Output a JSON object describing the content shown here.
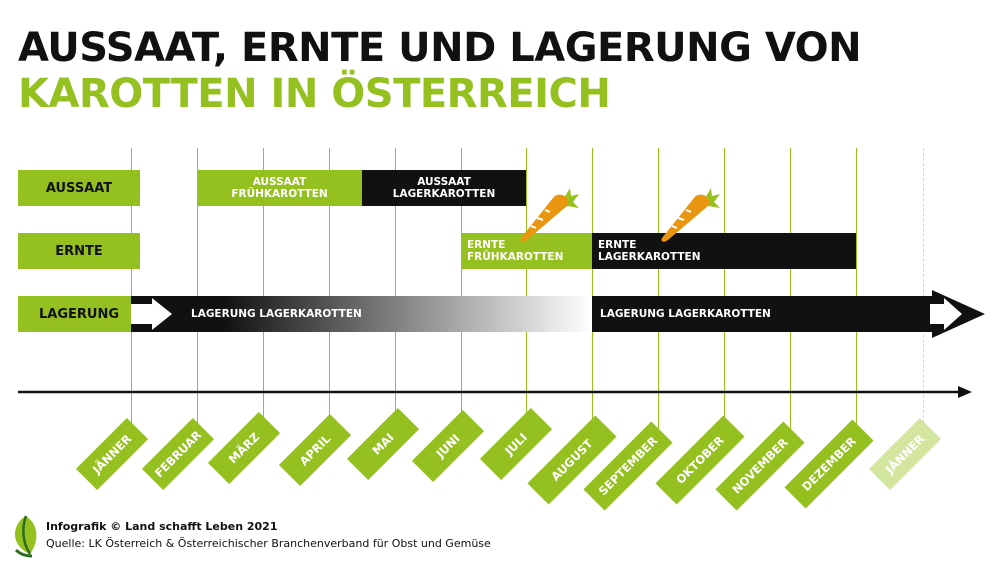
{
  "title": {
    "line1": "AUSSAAT, ERNTE UND LAGERUNG VON",
    "line2": "KAROTTEN IN ÖSTERREICH"
  },
  "rows": {
    "aussaat": "AUSSAAT",
    "ernte": "ERNTE",
    "lagerung": "LAGERUNG"
  },
  "bars": {
    "aussaat_frueh": [
      "AUSSAAT",
      "FRÜHKAROTTEN"
    ],
    "aussaat_lager": [
      "AUSSAAT",
      "LAGERKAROTTEN"
    ],
    "ernte_frueh": [
      "ERNTE",
      "FRÜHKAROTTEN"
    ],
    "ernte_lager": [
      "ERNTE",
      "LAGERKAROTTEN"
    ],
    "lagerung_1": "LAGERUNG LAGERKAROTTEN",
    "lagerung_2": "LAGERUNG LAGERKAROTTEN"
  },
  "months": [
    "JÄNNER",
    "FEBRUAR",
    "MÄRZ",
    "APRIL",
    "MAI",
    "JUNI",
    "JULI",
    "AUGUST",
    "SEPTEMBER",
    "OKTOBER",
    "NOVEMBER",
    "DEZEMBER",
    "JÄNNER"
  ],
  "icons": [
    "carrot-icon",
    "arrow-icon",
    "leaf-logo-icon"
  ],
  "colors": {
    "accent_green": "#94c11f",
    "light_green": "#d3e6a0",
    "black": "#111111",
    "carrot_orange": "#e8960f"
  },
  "footer": {
    "line1": "Infografik © Land schafft Leben 2021",
    "line2": "Quelle: LK Österreich & Österreichischer Branchenverband für Obst und Gemüse"
  }
}
